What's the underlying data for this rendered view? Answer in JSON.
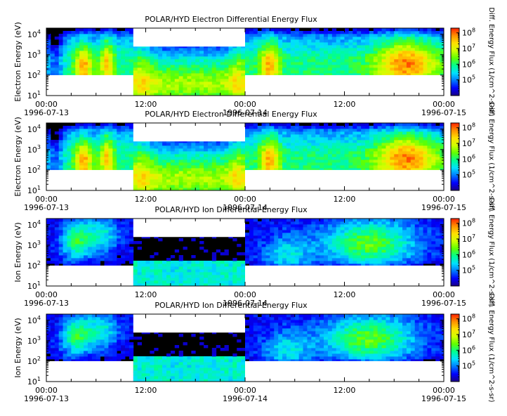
{
  "chart_data": [
    {
      "type": "heatmap",
      "title": "POLAR/HYD  Electron Differential Energy Flux",
      "ylabel": "Electron Energy (eV)",
      "colorbar_label": "Diff. Energy Flux (1/cm^2-s-sr)",
      "yscale": "log",
      "ylim": [
        10,
        20000
      ],
      "yticks": [
        {
          "value": 10,
          "label": "10",
          "exp": "1"
        },
        {
          "value": 100,
          "label": "10",
          "exp": "2"
        },
        {
          "value": 1000,
          "label": "10",
          "exp": "3"
        },
        {
          "value": 10000,
          "label": "10",
          "exp": "4"
        }
      ],
      "xlim_hours": [
        0,
        48
      ],
      "xticks": [
        {
          "hour": 0,
          "time": "00:00",
          "date": "1996-07-13"
        },
        {
          "hour": 12,
          "time": "12:00",
          "date": ""
        },
        {
          "hour": 24,
          "time": "00:00",
          "date": "1996-07-14"
        },
        {
          "hour": 36,
          "time": "12:00",
          "date": ""
        },
        {
          "hour": 48,
          "time": "00:00",
          "date": "1996-07-15"
        }
      ],
      "colorbar_ticks": [
        {
          "value": 100000,
          "label": "10",
          "exp": "5"
        },
        {
          "value": 1000000,
          "label": "10",
          "exp": "6"
        },
        {
          "value": 10000000,
          "label": "10",
          "exp": "7"
        },
        {
          "value": 100000000,
          "label": "10",
          "exp": "8"
        }
      ],
      "clim": [
        10000,
        200000000
      ],
      "gaps": [
        {
          "x": [
            0,
            10.5
          ],
          "y": [
            10,
            100
          ]
        },
        {
          "x": [
            10.5,
            24
          ],
          "y": [
            2500,
            20000
          ]
        },
        {
          "x": [
            24,
            48
          ],
          "y": [
            10,
            100
          ]
        }
      ]
    },
    {
      "type": "heatmap",
      "title": "POLAR/HYD  Electron Differential Energy Flux",
      "ylabel": "Electron Energy (eV)",
      "colorbar_label": "Diff. Energy Flux (1/cm^2-s-sr)",
      "yscale": "log",
      "ylim": [
        10,
        20000
      ],
      "yticks": [
        {
          "value": 10,
          "label": "10",
          "exp": "1"
        },
        {
          "value": 100,
          "label": "10",
          "exp": "2"
        },
        {
          "value": 1000,
          "label": "10",
          "exp": "3"
        },
        {
          "value": 10000,
          "label": "10",
          "exp": "4"
        }
      ],
      "xlim_hours": [
        0,
        48
      ],
      "xticks": [
        {
          "hour": 0,
          "time": "00:00",
          "date": "1996-07-13"
        },
        {
          "hour": 12,
          "time": "12:00",
          "date": ""
        },
        {
          "hour": 24,
          "time": "00:00",
          "date": "1996-07-14"
        },
        {
          "hour": 36,
          "time": "12:00",
          "date": ""
        },
        {
          "hour": 48,
          "time": "00:00",
          "date": "1996-07-15"
        }
      ],
      "colorbar_ticks": [
        {
          "value": 100000,
          "label": "10",
          "exp": "5"
        },
        {
          "value": 1000000,
          "label": "10",
          "exp": "6"
        },
        {
          "value": 10000000,
          "label": "10",
          "exp": "7"
        },
        {
          "value": 100000000,
          "label": "10",
          "exp": "8"
        }
      ],
      "clim": [
        10000,
        200000000
      ],
      "gaps": [
        {
          "x": [
            0,
            10.5
          ],
          "y": [
            10,
            100
          ]
        },
        {
          "x": [
            10.5,
            24
          ],
          "y": [
            2500,
            20000
          ]
        },
        {
          "x": [
            24,
            48
          ],
          "y": [
            10,
            100
          ]
        }
      ]
    },
    {
      "type": "heatmap",
      "title": "POLAR/HYD  Ion Differential Energy Flux",
      "ylabel": "Ion Energy (eV)",
      "colorbar_label": "Diff. Energy Flux (1/cm^2-s-sr)",
      "yscale": "log",
      "ylim": [
        10,
        20000
      ],
      "yticks": [
        {
          "value": 10,
          "label": "10",
          "exp": "1"
        },
        {
          "value": 100,
          "label": "10",
          "exp": "2"
        },
        {
          "value": 1000,
          "label": "10",
          "exp": "3"
        },
        {
          "value": 10000,
          "label": "10",
          "exp": "4"
        }
      ],
      "xlim_hours": [
        0,
        48
      ],
      "xticks": [
        {
          "hour": 0,
          "time": "00:00",
          "date": "1996-07-13"
        },
        {
          "hour": 12,
          "time": "12:00",
          "date": ""
        },
        {
          "hour": 24,
          "time": "00:00",
          "date": "1996-07-14"
        },
        {
          "hour": 36,
          "time": "12:00",
          "date": ""
        },
        {
          "hour": 48,
          "time": "00:00",
          "date": "1996-07-15"
        }
      ],
      "colorbar_ticks": [
        {
          "value": 100000,
          "label": "10",
          "exp": "5"
        },
        {
          "value": 1000000,
          "label": "10",
          "exp": "6"
        },
        {
          "value": 10000000,
          "label": "10",
          "exp": "7"
        },
        {
          "value": 100000000,
          "label": "10",
          "exp": "8"
        }
      ],
      "clim": [
        10000,
        200000000
      ],
      "gaps": [
        {
          "x": [
            0,
            10.5
          ],
          "y": [
            10,
            100
          ]
        },
        {
          "x": [
            10.5,
            24
          ],
          "y": [
            2500,
            20000
          ]
        },
        {
          "x": [
            24,
            48
          ],
          "y": [
            10,
            100
          ]
        }
      ]
    },
    {
      "type": "heatmap",
      "title": "POLAR/HYD  Ion Differential Energy Flux",
      "ylabel": "Ion Energy (eV)",
      "colorbar_label": "Diff. Energy Flux (1/cm^2-s-sr)",
      "yscale": "log",
      "ylim": [
        10,
        20000
      ],
      "yticks": [
        {
          "value": 10,
          "label": "10",
          "exp": "1"
        },
        {
          "value": 100,
          "label": "10",
          "exp": "2"
        },
        {
          "value": 1000,
          "label": "10",
          "exp": "3"
        },
        {
          "value": 10000,
          "label": "10",
          "exp": "4"
        }
      ],
      "xlim_hours": [
        0,
        48
      ],
      "xticks": [
        {
          "hour": 0,
          "time": "00:00",
          "date": "1996-07-13"
        },
        {
          "hour": 12,
          "time": "12:00",
          "date": ""
        },
        {
          "hour": 24,
          "time": "00:00",
          "date": "1996-07-14"
        },
        {
          "hour": 36,
          "time": "12:00",
          "date": ""
        },
        {
          "hour": 48,
          "time": "00:00",
          "date": "1996-07-15"
        }
      ],
      "colorbar_ticks": [
        {
          "value": 100000,
          "label": "10",
          "exp": "5"
        },
        {
          "value": 1000000,
          "label": "10",
          "exp": "6"
        },
        {
          "value": 10000000,
          "label": "10",
          "exp": "7"
        },
        {
          "value": 100000000,
          "label": "10",
          "exp": "8"
        }
      ],
      "clim": [
        10000,
        200000000
      ],
      "gaps": [
        {
          "x": [
            0,
            10.5
          ],
          "y": [
            10,
            100
          ]
        },
        {
          "x": [
            10.5,
            24
          ],
          "y": [
            2500,
            20000
          ]
        },
        {
          "x": [
            24,
            48
          ],
          "y": [
            10,
            100
          ]
        }
      ]
    }
  ],
  "colormap": [
    "#1a0085",
    "#0000ff",
    "#0078ff",
    "#00e0ff",
    "#00ff90",
    "#60ff00",
    "#d0ff00",
    "#ffe000",
    "#ff9000",
    "#ff2000"
  ],
  "missing_color": "#ffffff",
  "background_color": "#000000"
}
